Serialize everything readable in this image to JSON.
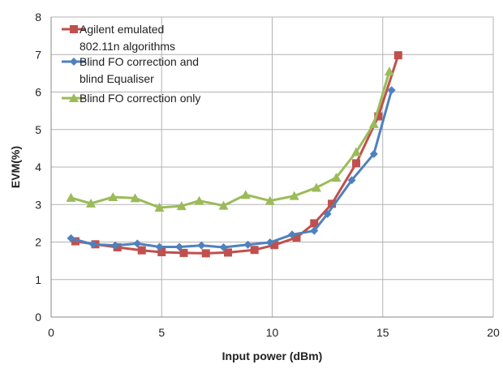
{
  "chart_data": {
    "type": "line",
    "xlabel": "Input power (dBm)",
    "ylabel": "EVM(%)",
    "xlim": [
      0,
      20
    ],
    "ylim": [
      0,
      8
    ],
    "x_ticks": [
      "0",
      "5",
      "10",
      "15",
      "20"
    ],
    "y_ticks": [
      "0",
      "1",
      "2",
      "3",
      "4",
      "5",
      "6",
      "7",
      "8"
    ],
    "grid": "on",
    "legend_position": "top-left",
    "series": [
      {
        "name_lines": [
          "Agilent emulated",
          "802.11n algorithms"
        ],
        "color": "#c0504d",
        "marker": "square",
        "x": [
          1.1,
          2.0,
          3.0,
          4.1,
          5.0,
          6.0,
          7.0,
          8.0,
          9.2,
          10.1,
          11.1,
          11.9,
          12.7,
          13.8,
          14.8,
          15.7
        ],
        "y": [
          2.02,
          1.94,
          1.86,
          1.78,
          1.73,
          1.71,
          1.7,
          1.72,
          1.79,
          1.92,
          2.12,
          2.5,
          3.02,
          4.1,
          5.35,
          6.98
        ]
      },
      {
        "name_lines": [
          "Blind FO correction and",
          "blind Equaliser"
        ],
        "color": "#4f81bd",
        "marker": "diamond",
        "x": [
          0.9,
          1.9,
          2.9,
          3.9,
          4.9,
          5.8,
          6.8,
          7.8,
          8.9,
          9.9,
          10.9,
          11.9,
          12.5,
          13.6,
          14.6,
          15.4
        ],
        "y": [
          2.1,
          1.94,
          1.91,
          1.96,
          1.87,
          1.87,
          1.91,
          1.86,
          1.93,
          1.99,
          2.2,
          2.3,
          2.75,
          3.65,
          4.35,
          6.05
        ]
      },
      {
        "name_lines": [
          "Blind FO correction only"
        ],
        "color": "#9bbb59",
        "marker": "triangle",
        "x": [
          0.9,
          1.8,
          2.8,
          3.8,
          4.9,
          5.9,
          6.7,
          7.8,
          8.8,
          9.9,
          11.0,
          12.0,
          12.9,
          13.8,
          14.6,
          15.3
        ],
        "y": [
          3.18,
          3.03,
          3.2,
          3.17,
          2.92,
          2.96,
          3.1,
          2.97,
          3.26,
          3.1,
          3.23,
          3.45,
          3.72,
          4.4,
          5.15,
          6.55
        ]
      }
    ]
  }
}
